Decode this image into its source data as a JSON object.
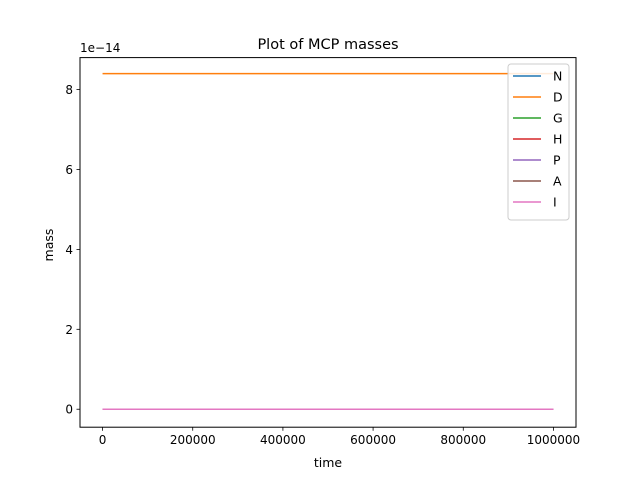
{
  "chart_data": {
    "type": "line",
    "title": "Plot of MCP masses",
    "xlabel": "time",
    "ylabel": "mass",
    "y_offset_label": "1e−14",
    "xlim": [
      -50000,
      1050000
    ],
    "ylim": [
      -0.45,
      8.8
    ],
    "y_scale_factor": 1e-14,
    "x_ticks": [
      0,
      200000,
      400000,
      600000,
      800000,
      1000000
    ],
    "x_tick_labels": [
      "0",
      "200000",
      "400000",
      "600000",
      "800000",
      "1000000"
    ],
    "y_ticks": [
      0,
      2,
      4,
      6,
      8
    ],
    "y_tick_labels": [
      "0",
      "2",
      "4",
      "6",
      "8"
    ],
    "legend_position": "top-right",
    "grid": false,
    "series": [
      {
        "name": "N",
        "color": "#1f77b4",
        "x": [
          0,
          1000000
        ],
        "y": [
          0,
          0
        ]
      },
      {
        "name": "D",
        "color": "#ff7f0e",
        "x": [
          0,
          1000000
        ],
        "y": [
          8.4,
          8.4
        ]
      },
      {
        "name": "G",
        "color": "#2ca02c",
        "x": [
          0,
          1000000
        ],
        "y": [
          0,
          0
        ]
      },
      {
        "name": "H",
        "color": "#d62728",
        "x": [
          0,
          1000000
        ],
        "y": [
          0,
          0
        ]
      },
      {
        "name": "P",
        "color": "#9467bd",
        "x": [
          0,
          1000000
        ],
        "y": [
          0,
          0
        ]
      },
      {
        "name": "A",
        "color": "#8c564b",
        "x": [
          0,
          1000000
        ],
        "y": [
          0,
          0
        ]
      },
      {
        "name": "I",
        "color": "#e377c2",
        "x": [
          0,
          1000000
        ],
        "y": [
          0,
          0
        ]
      }
    ]
  }
}
